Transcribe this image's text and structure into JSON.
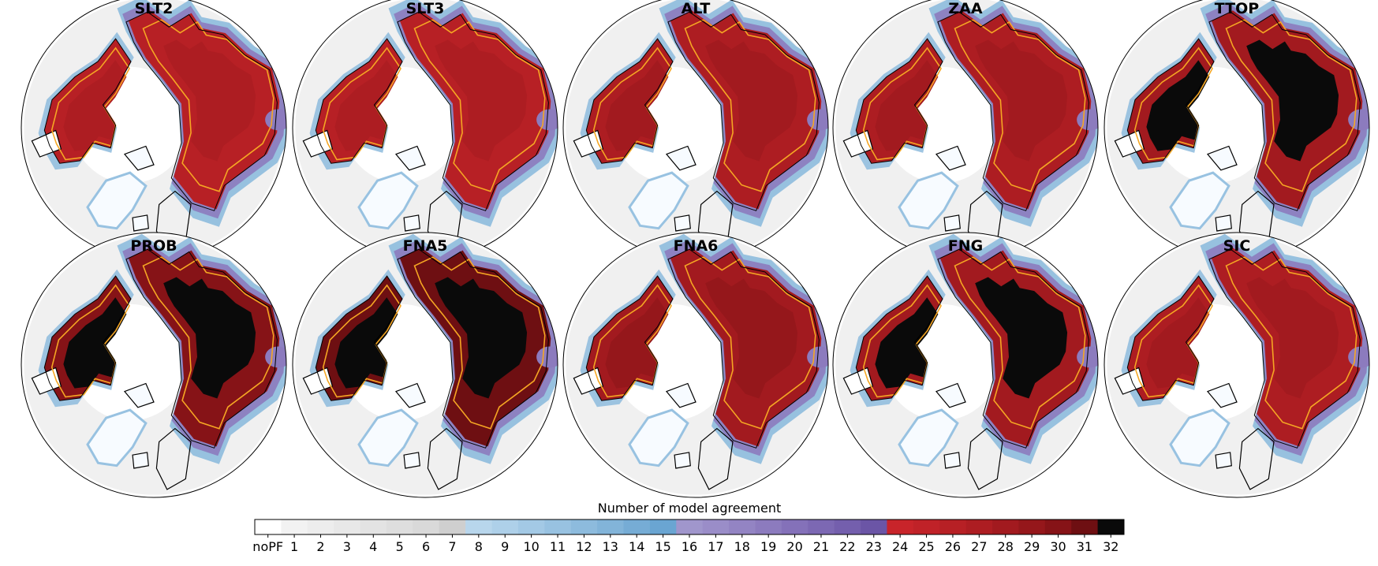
{
  "panels": [
    {
      "id": "SLT2",
      "title": "SLT2",
      "dominant_level": 26,
      "core_level": 27
    },
    {
      "id": "SLT3",
      "title": "SLT3",
      "dominant_level": 26,
      "core_level": 27
    },
    {
      "id": "ALT",
      "title": "ALT",
      "dominant_level": 27,
      "core_level": 28
    },
    {
      "id": "ZAA",
      "title": "ZAA",
      "dominant_level": 27,
      "core_level": 28
    },
    {
      "id": "TTOP",
      "title": "TTOP",
      "dominant_level": 28,
      "core_level": 32
    },
    {
      "id": "PROB",
      "title": "PROB",
      "dominant_level": 30,
      "core_level": 32
    },
    {
      "id": "FNA5",
      "title": "FNA5",
      "dominant_level": 31,
      "core_level": 32
    },
    {
      "id": "FNA6",
      "title": "FNA6",
      "dominant_level": 28,
      "core_level": 29
    },
    {
      "id": "FNG",
      "title": "FNG",
      "dominant_level": 28,
      "core_level": 32
    },
    {
      "id": "SIC",
      "title": "SIC",
      "dominant_level": 27,
      "core_level": 28
    }
  ],
  "colorbar": {
    "title": "Number of model agreement",
    "ticks": [
      "noPF",
      "1",
      "2",
      "3",
      "4",
      "5",
      "6",
      "7",
      "8",
      "9",
      "10",
      "11",
      "12",
      "13",
      "14",
      "15",
      "16",
      "17",
      "18",
      "19",
      "20",
      "21",
      "22",
      "23",
      "24",
      "25",
      "26",
      "27",
      "28",
      "29",
      "30",
      "31",
      "32"
    ],
    "colors": [
      "#ffffff",
      "#f2f2f2",
      "#ededed",
      "#e8e8e8",
      "#e3e3e3",
      "#dedede",
      "#d9d9d9",
      "#cfcfcf",
      "#b8d6ec",
      "#aed0e9",
      "#a3c9e5",
      "#98c2e1",
      "#8dbbdd",
      "#82b4d9",
      "#76acd5",
      "#6aa5d2",
      "#a096cc",
      "#9a8dc8",
      "#9384c3",
      "#8c7bbe",
      "#8471b9",
      "#7c68b3",
      "#745fad",
      "#6b55a6",
      "#c8242a",
      "#c02228",
      "#b72025",
      "#ad1d22",
      "#a21a1f",
      "#95171b",
      "#861317",
      "#6e0f12",
      "#0a0a0a"
    ]
  },
  "contour_color": "#f5a623"
}
